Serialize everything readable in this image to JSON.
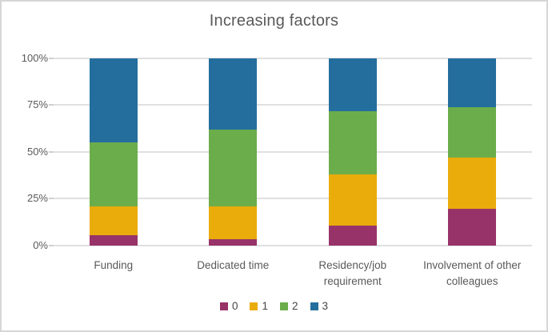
{
  "chart_data": {
    "type": "bar",
    "subtype": "100%-stacked-column",
    "title": "Increasing factors",
    "categories": [
      "Funding",
      "Dedicated time",
      "Residency/job requirement",
      "Involvement of other colleagues"
    ],
    "series": [
      {
        "name": "0",
        "color": "#98336A",
        "values": [
          5.5,
          3.5,
          10.5,
          19.5
        ]
      },
      {
        "name": "1",
        "color": "#E9AC0B",
        "values": [
          15.5,
          17.5,
          27.5,
          27.5
        ]
      },
      {
        "name": "2",
        "color": "#6CAD4B",
        "values": [
          34,
          41,
          34,
          27
        ]
      },
      {
        "name": "3",
        "color": "#246E9E",
        "values": [
          45,
          38,
          28,
          26
        ]
      }
    ],
    "yticks": [
      "0%",
      "25%",
      "50%",
      "75%",
      "100%"
    ],
    "ylim": [
      0,
      100
    ],
    "unit": "percent",
    "grid": true,
    "legend_position": "bottom",
    "gridline_color": "#e0e0e0",
    "text_color": "#595959"
  }
}
